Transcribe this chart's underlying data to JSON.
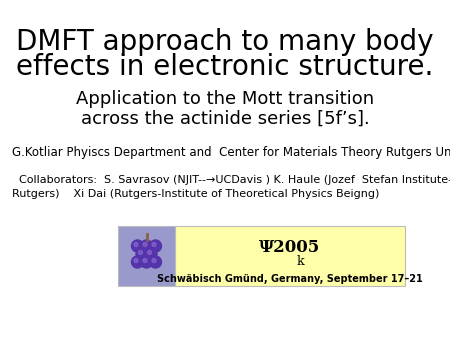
{
  "title_line1": "DMFT approach to many body",
  "title_line2": "effects in electronic structure.",
  "subtitle_line1": "Application to the Mott transition",
  "subtitle_line2": "across the actinide series [5f’s].",
  "affiliation": "G.Kotliar Phyiscs Department and  Center for Materials Theory Rutgers University.",
  "collaborators_line1": "  Collaborators:  S. Savrasov (NJIT--→UCDavis ) K. Haule (Jozef  Stefan Institute-",
  "collaborators_line2": "Rutgers)    Xi Dai (Rutgers-Institute of Theoretical Physics Beigng)",
  "banner_psi": "Ψ2005",
  "banner_k": "k",
  "banner_location": "Schwäbisch Gmünd, Germany, September 17–21",
  "bg_color": "#ffffff",
  "title_fontsize": 20,
  "subtitle_fontsize": 13,
  "affil_fontsize": 8.5,
  "collab_fontsize": 8.0,
  "banner_bg": "#ffffaa",
  "logo_bg": "#9999cc"
}
